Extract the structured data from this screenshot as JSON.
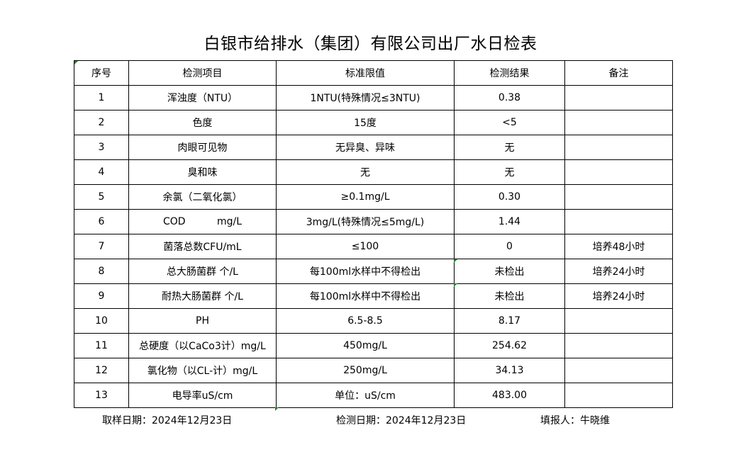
{
  "title": "白银市给排水（集团）有限公司出厂水日检表",
  "headers": [
    "序号",
    "检测项目",
    "标准限值",
    "检测结果",
    "备注"
  ],
  "rows": [
    [
      "1",
      "浑浊度（NTU）",
      "1NTU(特殊情况≤3NTU)",
      "0.38",
      ""
    ],
    [
      "2",
      "色度",
      "15度",
      "<5",
      ""
    ],
    [
      "3",
      "肉眼可见物",
      "无异臭、异味",
      "无",
      ""
    ],
    [
      "4",
      "臭和味",
      "无",
      "无",
      ""
    ],
    [
      "5",
      "余氯（二氧化氯）",
      "≥0.1mg/L",
      "0.30",
      ""
    ],
    [
      "6",
      "COD          mg/L",
      "3mg/L(特殊情况≤5mg/L)",
      "1.44",
      ""
    ],
    [
      "7",
      "菌落总数CFU/mL",
      "≤100",
      "0",
      "培养48小时"
    ],
    [
      "8",
      "总大肠菌群 个/L",
      "每100ml水样中不得检出",
      "未检出",
      "培养24小时"
    ],
    [
      "9",
      "耐热大肠菌群 个/L",
      "每100ml水样中不得检出",
      "未检出",
      "培养24小时"
    ],
    [
      "10",
      "PH",
      "6.5-8.5",
      "8.17",
      ""
    ],
    [
      "11",
      "总硬度（以CaCo3计）mg/L",
      "450mg/L",
      "254.62",
      ""
    ],
    [
      "12",
      "氯化物（以CL-计）mg/L",
      "250mg/L",
      "34.13",
      ""
    ],
    [
      "13",
      "电导率uS/cm",
      "单位：uS/cm",
      "483.00",
      ""
    ]
  ],
  "footer": {
    "sample_date": "取样日期：2024年12月23日",
    "test_date": "检测日期：2024年12月23日",
    "reporter": "填报人：牛晓维"
  },
  "colors": {
    "cell_marker": "#1a8a2a"
  }
}
